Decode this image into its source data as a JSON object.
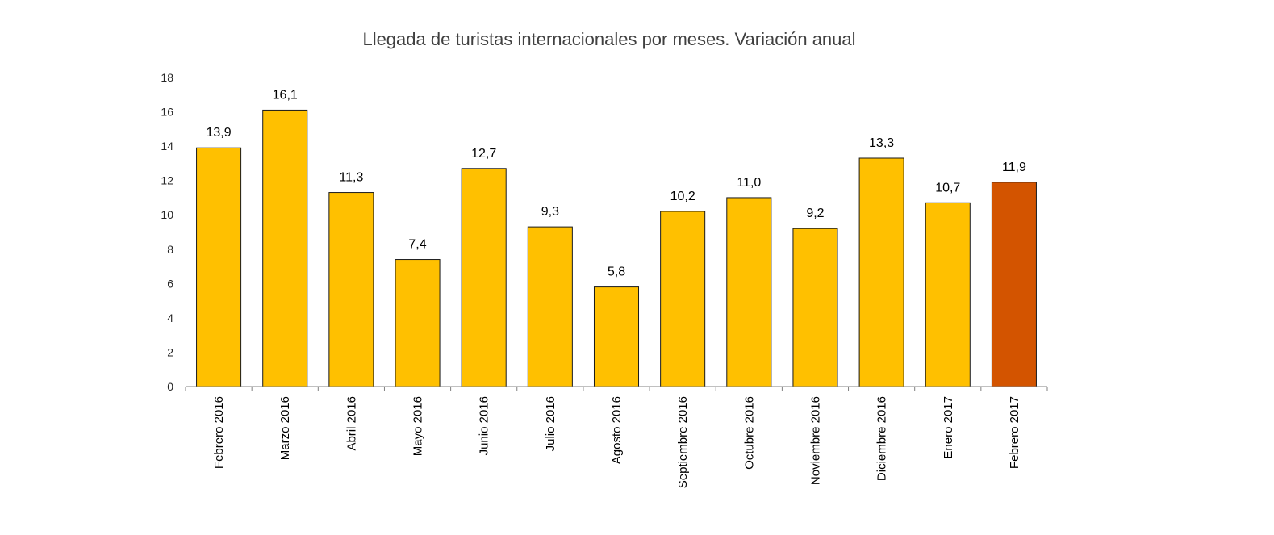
{
  "chart_data": {
    "type": "bar",
    "title": "Llegada de turistas internacionales por meses. Variación anual",
    "xlabel": "",
    "ylabel": "",
    "ylim": [
      0,
      18
    ],
    "yticks": [
      0,
      2,
      4,
      6,
      8,
      10,
      12,
      14,
      16,
      18
    ],
    "grid": false,
    "legend": "none",
    "categories": [
      "Febrero 2016",
      "Marzo 2016",
      "Abril 2016",
      "Mayo 2016",
      "Junio 2016",
      "Julio 2016",
      "Agosto 2016",
      "Septiembre 2016",
      "Octubre 2016",
      "Noviembre 2016",
      "Diciembre 2016",
      "Enero 2017",
      "Febrero 2017"
    ],
    "values": [
      13.9,
      16.1,
      11.3,
      7.4,
      12.7,
      9.3,
      5.8,
      10.2,
      11.0,
      9.2,
      13.3,
      10.7,
      11.9
    ],
    "data_labels": [
      "13,9",
      "16,1",
      "11,3",
      "7,4",
      "12,7",
      "9,3",
      "5,8",
      "10,2",
      "11,0",
      "9,2",
      "13,3",
      "10,7",
      "11,9"
    ],
    "colors": {
      "bar": "#FFC000",
      "highlight": "#D35400"
    },
    "highlight_category": "Febrero 2017"
  }
}
